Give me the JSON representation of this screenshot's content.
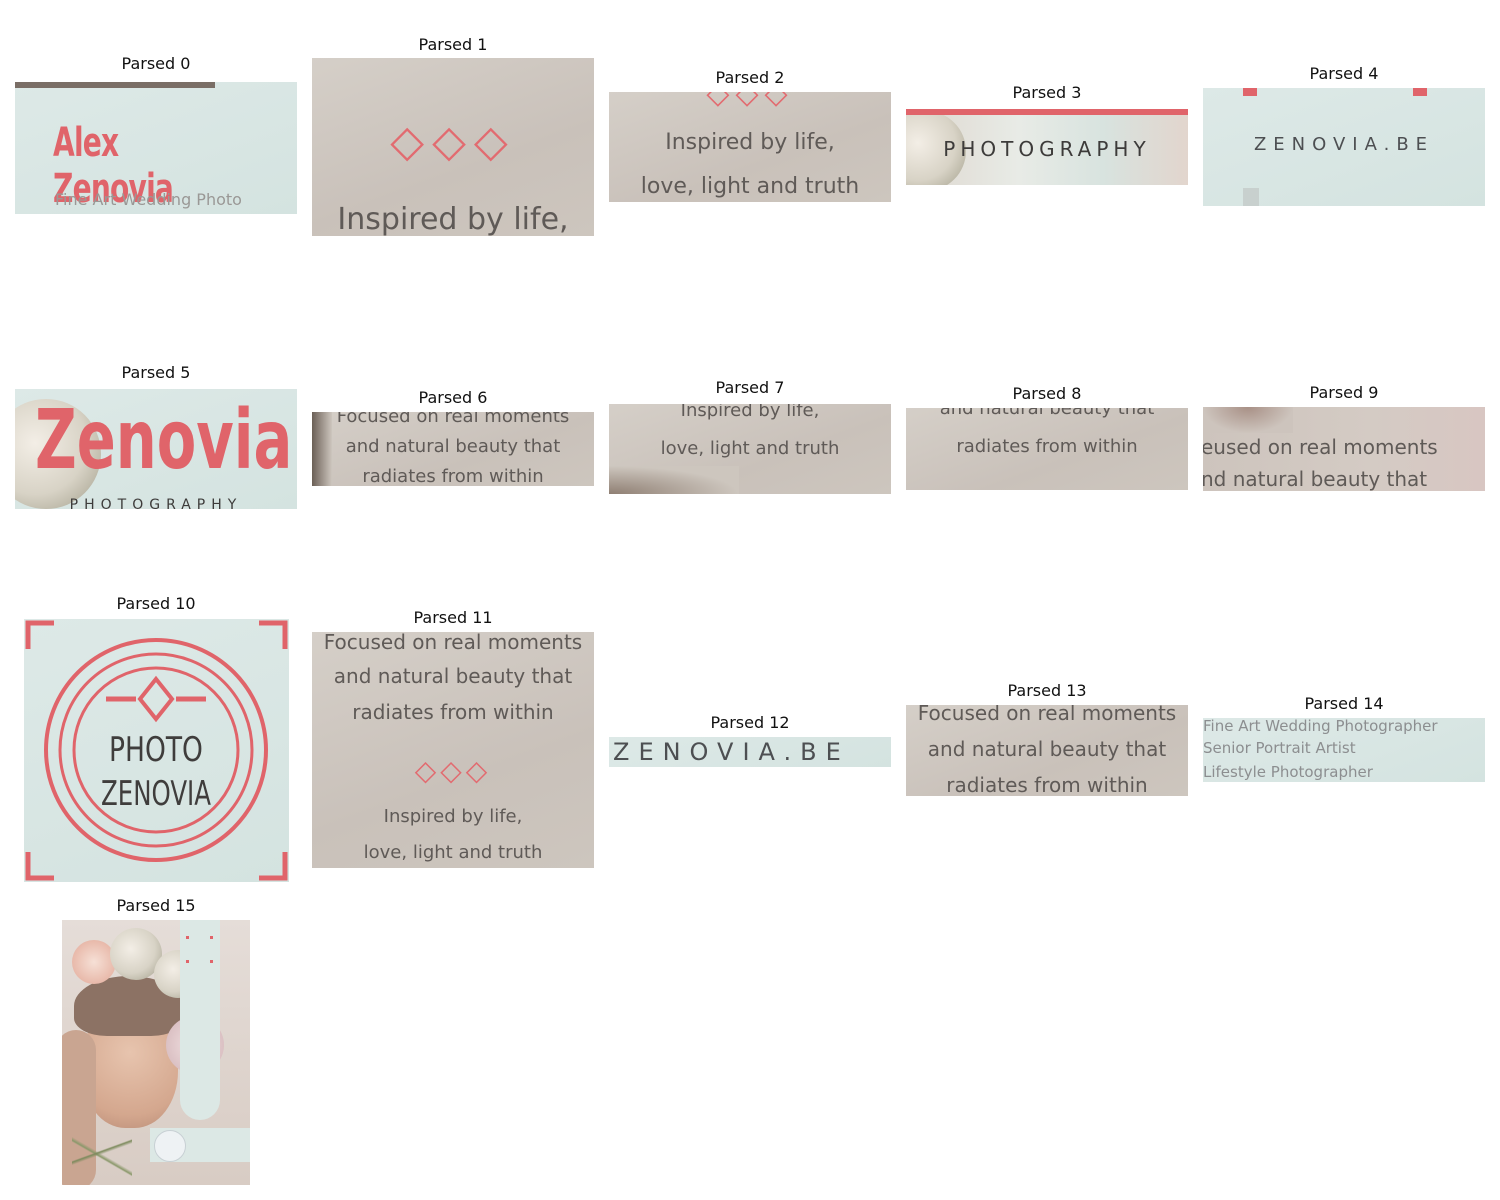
{
  "tiles": [
    {
      "title": "Parsed 0"
    },
    {
      "title": "Parsed 1"
    },
    {
      "title": "Parsed 2"
    },
    {
      "title": "Parsed 3"
    },
    {
      "title": "Parsed 4"
    },
    {
      "title": "Parsed 5"
    },
    {
      "title": "Parsed 6"
    },
    {
      "title": "Parsed 7"
    },
    {
      "title": "Parsed 8"
    },
    {
      "title": "Parsed 9"
    },
    {
      "title": "Parsed 10"
    },
    {
      "title": "Parsed 11"
    },
    {
      "title": "Parsed 12"
    },
    {
      "title": "Parsed 13"
    },
    {
      "title": "Parsed 14"
    },
    {
      "title": "Parsed 15"
    }
  ],
  "text": {
    "name": "Alex Zenovia",
    "fine_art_partial": "Fine Art Wedding Photo",
    "diamonds": "◇◇◇",
    "inspired_1": "Inspired by life,",
    "inspired_2": "love, light and truth",
    "photography": "PHOTOGRAPHY",
    "website": "ZENOVIA.BE",
    "zenovia": "Zenovia",
    "photography_partial": "PHOTOGRAPHY",
    "focused_1": "Focused on real moments",
    "focused_2": "and natural beauty that",
    "focused_3": "radiates from within",
    "focused_1_partial": "eused on real moments",
    "focused_2_partial": "nd natural beauty that",
    "logo_line1": "PHOTO",
    "logo_line2": "ZENOVIA",
    "services_1": "Fine Art Wedding Photographer",
    "services_2": "Senior Portrait Artist",
    "services_3": "Lifestyle Photographer"
  },
  "colors": {
    "accent_red": "#e0646a",
    "beige_bg": "#cdc6be",
    "mint_bg": "#d7e6e3",
    "grey_text": "#5f5a57"
  }
}
